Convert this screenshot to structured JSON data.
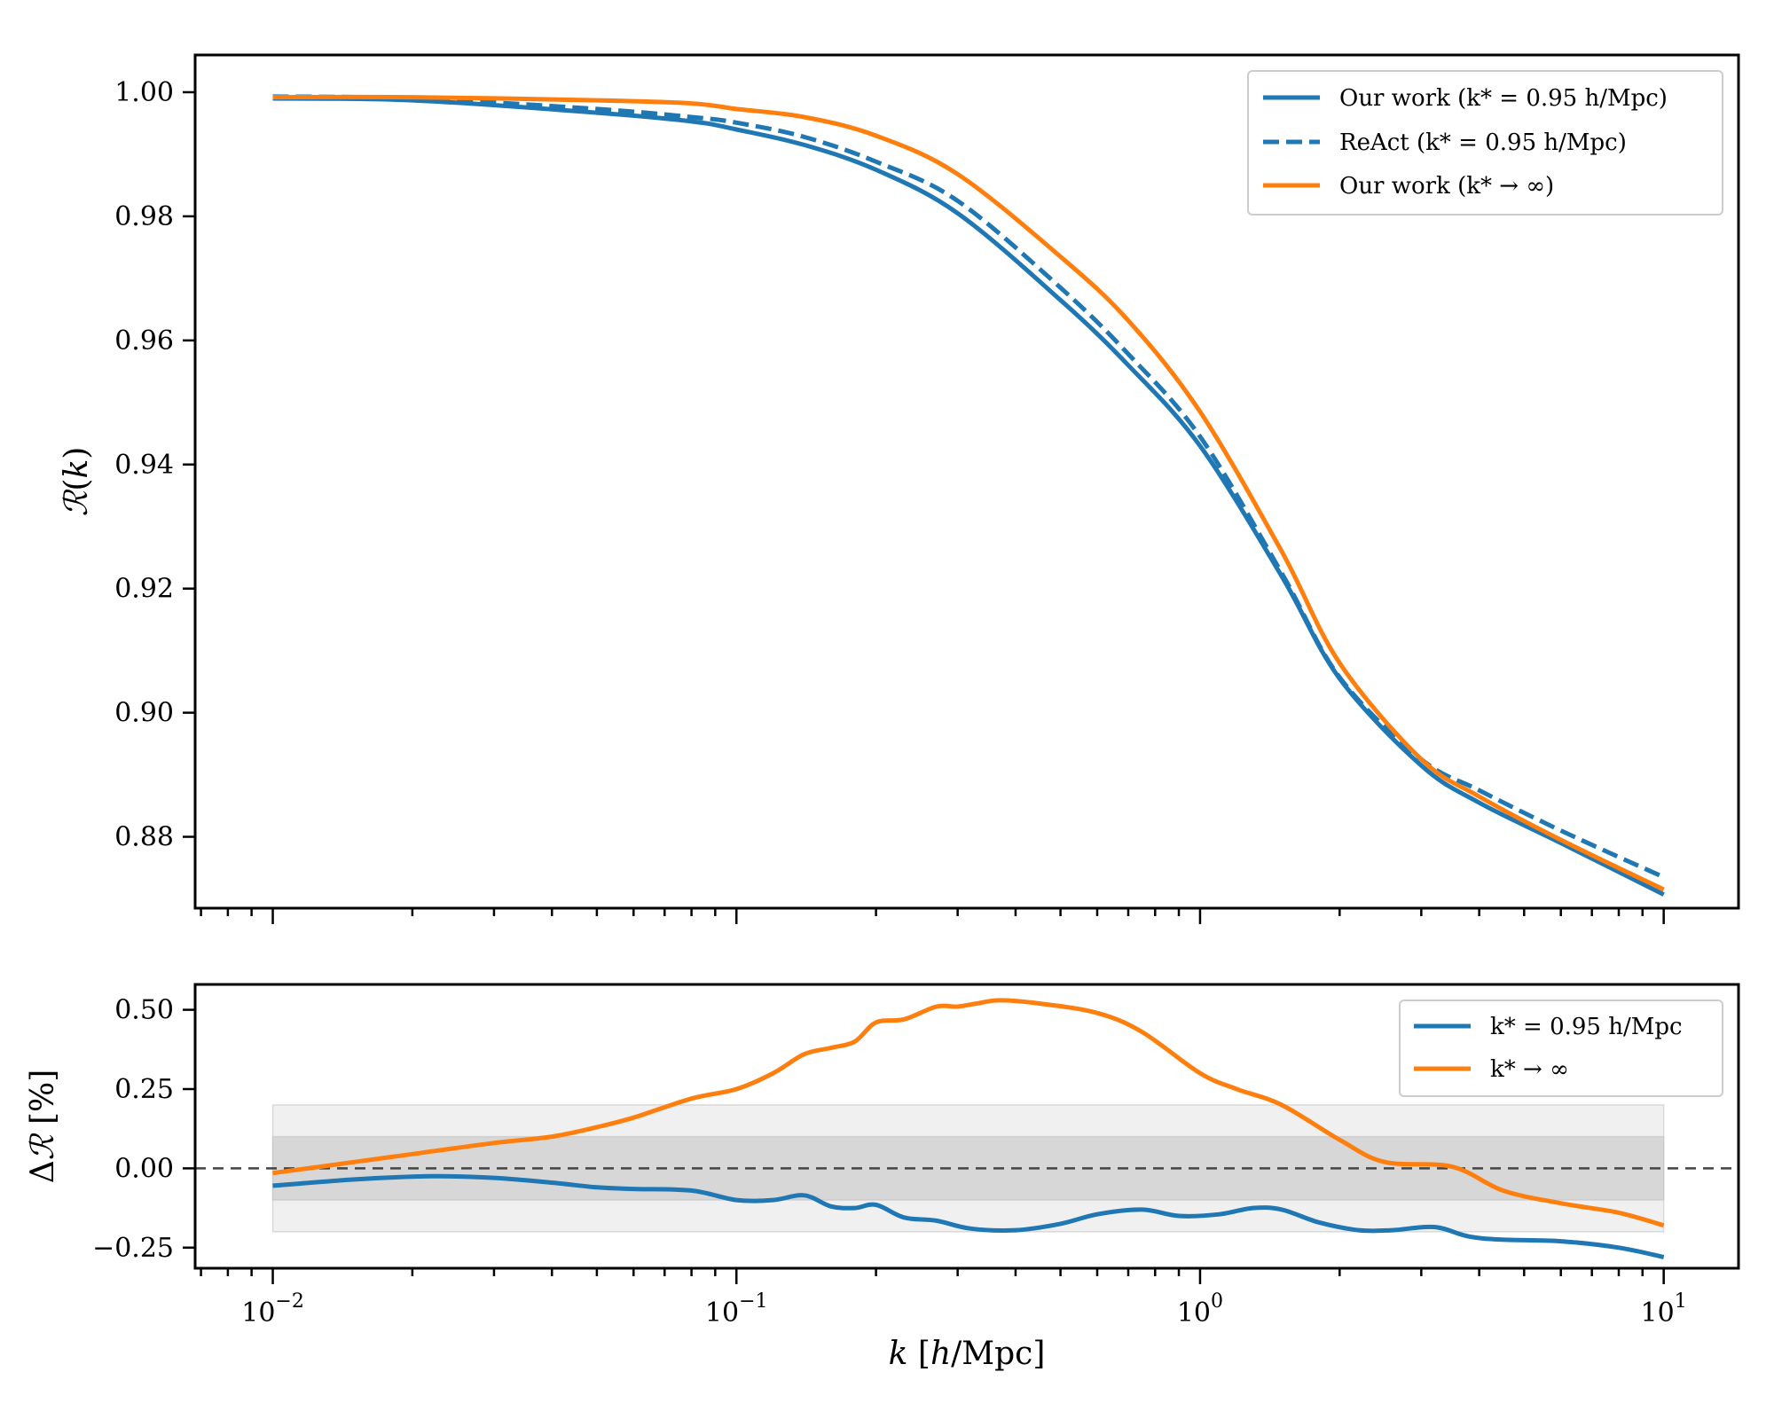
{
  "chart_data": [
    {
      "type": "line",
      "panel": "top",
      "ylabel": "𝓡(k)",
      "xscale": "log",
      "xlim": [
        0.0068,
        14.5
      ],
      "ylim": [
        0.8685,
        1.006
      ],
      "xticks": [
        0.01,
        0.1,
        1,
        10
      ],
      "yticks": [
        0.88,
        0.9,
        0.92,
        0.94,
        0.96,
        0.98,
        1.0
      ],
      "ytick_labels": [
        "0.88",
        "0.90",
        "0.92",
        "0.94",
        "0.96",
        "0.98",
        "1.00"
      ],
      "legend_position": "top-right",
      "series": [
        {
          "name": "Our work (k* = 0.95 h/Mpc)",
          "color": "#1f77b4",
          "style": "solid",
          "x": [
            0.01,
            0.02,
            0.05,
            0.08,
            0.1,
            0.14,
            0.2,
            0.3,
            0.5,
            0.7,
            1.0,
            1.5,
            2.0,
            3.0,
            4.0,
            6.0,
            10.0
          ],
          "y": [
            0.999,
            0.9987,
            0.9967,
            0.9953,
            0.994,
            0.9915,
            0.9875,
            0.9805,
            0.9665,
            0.956,
            0.943,
            0.922,
            0.9055,
            0.8915,
            0.8855,
            0.879,
            0.8707
          ]
        },
        {
          "name": "ReAct (k* = 0.95 h/Mpc)",
          "color": "#1f77b4",
          "style": "dashed",
          "x": [
            0.01,
            0.02,
            0.05,
            0.08,
            0.1,
            0.14,
            0.2,
            0.3,
            0.5,
            0.7,
            1.0,
            1.5,
            2.0,
            3.0,
            4.0,
            6.0,
            10.0
          ],
          "y": [
            0.9993,
            0.999,
            0.9973,
            0.996,
            0.9951,
            0.9928,
            0.9888,
            0.9825,
            0.9685,
            0.9578,
            0.9445,
            0.9225,
            0.9057,
            0.8925,
            0.8875,
            0.881,
            0.8735
          ]
        },
        {
          "name": "Our work (k* → ∞)",
          "color": "#ff7f0e",
          "style": "solid",
          "x": [
            0.01,
            0.02,
            0.05,
            0.08,
            0.1,
            0.14,
            0.2,
            0.3,
            0.5,
            0.7,
            1.0,
            1.5,
            2.0,
            3.0,
            4.0,
            6.0,
            10.0
          ],
          "y": [
            0.9992,
            0.9992,
            0.9987,
            0.9982,
            0.9973,
            0.996,
            0.993,
            0.9868,
            0.9735,
            0.9632,
            0.9485,
            0.926,
            0.908,
            0.8925,
            0.8865,
            0.8795,
            0.8715
          ]
        }
      ]
    },
    {
      "type": "line",
      "panel": "bottom",
      "xlabel": "k [h/Mpc]",
      "ylabel": "Δ𝓡 [%]",
      "xscale": "log",
      "xlim": [
        0.0068,
        14.5
      ],
      "ylim": [
        -0.315,
        0.58
      ],
      "xticks": [
        0.01,
        0.1,
        1,
        10
      ],
      "xtick_labels": [
        {
          "base": "10",
          "exp": "−2"
        },
        {
          "base": "10",
          "exp": "−1"
        },
        {
          "base": "10",
          "exp": "0"
        },
        {
          "base": "10",
          "exp": "1"
        }
      ],
      "yticks": [
        -0.25,
        0.0,
        0.25,
        0.5
      ],
      "ytick_labels": [
        "−0.25",
        "0.00",
        "0.25",
        "0.50"
      ],
      "bands": [
        {
          "y_range": [
            -0.2,
            0.2
          ],
          "x_range": [
            0.01,
            10
          ],
          "color": "#f0f0f0"
        },
        {
          "y_range": [
            -0.1,
            0.1
          ],
          "x_range": [
            0.01,
            10
          ],
          "color": "#d7d7d7"
        }
      ],
      "reference_line": {
        "y": 0,
        "style": "dashed",
        "color": "#444444"
      },
      "legend_position": "top-right",
      "series": [
        {
          "name": "k* = 0.95 h/Mpc",
          "color": "#1f77b4",
          "style": "solid",
          "x": [
            0.01,
            0.015,
            0.022,
            0.03,
            0.04,
            0.05,
            0.06,
            0.08,
            0.1,
            0.12,
            0.14,
            0.16,
            0.18,
            0.2,
            0.23,
            0.27,
            0.32,
            0.4,
            0.5,
            0.6,
            0.75,
            0.9,
            1.1,
            1.3,
            1.5,
            1.8,
            2.2,
            2.6,
            3.2,
            3.8,
            4.5,
            6.0,
            8.0,
            10.0
          ],
          "y": [
            -0.055,
            -0.035,
            -0.025,
            -0.03,
            -0.045,
            -0.06,
            -0.065,
            -0.07,
            -0.1,
            -0.1,
            -0.085,
            -0.12,
            -0.125,
            -0.115,
            -0.155,
            -0.165,
            -0.19,
            -0.195,
            -0.175,
            -0.145,
            -0.13,
            -0.15,
            -0.145,
            -0.125,
            -0.13,
            -0.17,
            -0.195,
            -0.195,
            -0.185,
            -0.215,
            -0.225,
            -0.23,
            -0.25,
            -0.28
          ]
        },
        {
          "name": "k* → ∞",
          "color": "#ff7f0e",
          "style": "solid",
          "x": [
            0.01,
            0.015,
            0.02,
            0.03,
            0.04,
            0.05,
            0.06,
            0.08,
            0.1,
            0.12,
            0.14,
            0.16,
            0.18,
            0.2,
            0.23,
            0.27,
            0.3,
            0.33,
            0.37,
            0.45,
            0.6,
            0.75,
            1.0,
            1.2,
            1.5,
            2.0,
            2.5,
            3.5,
            4.5,
            6.0,
            8.0,
            10.0
          ],
          "y": [
            -0.015,
            0.02,
            0.045,
            0.08,
            0.1,
            0.13,
            0.16,
            0.22,
            0.25,
            0.3,
            0.36,
            0.38,
            0.4,
            0.46,
            0.47,
            0.51,
            0.51,
            0.52,
            0.53,
            0.52,
            0.49,
            0.43,
            0.3,
            0.25,
            0.2,
            0.09,
            0.02,
            0.005,
            -0.07,
            -0.11,
            -0.14,
            -0.18
          ]
        }
      ]
    }
  ]
}
